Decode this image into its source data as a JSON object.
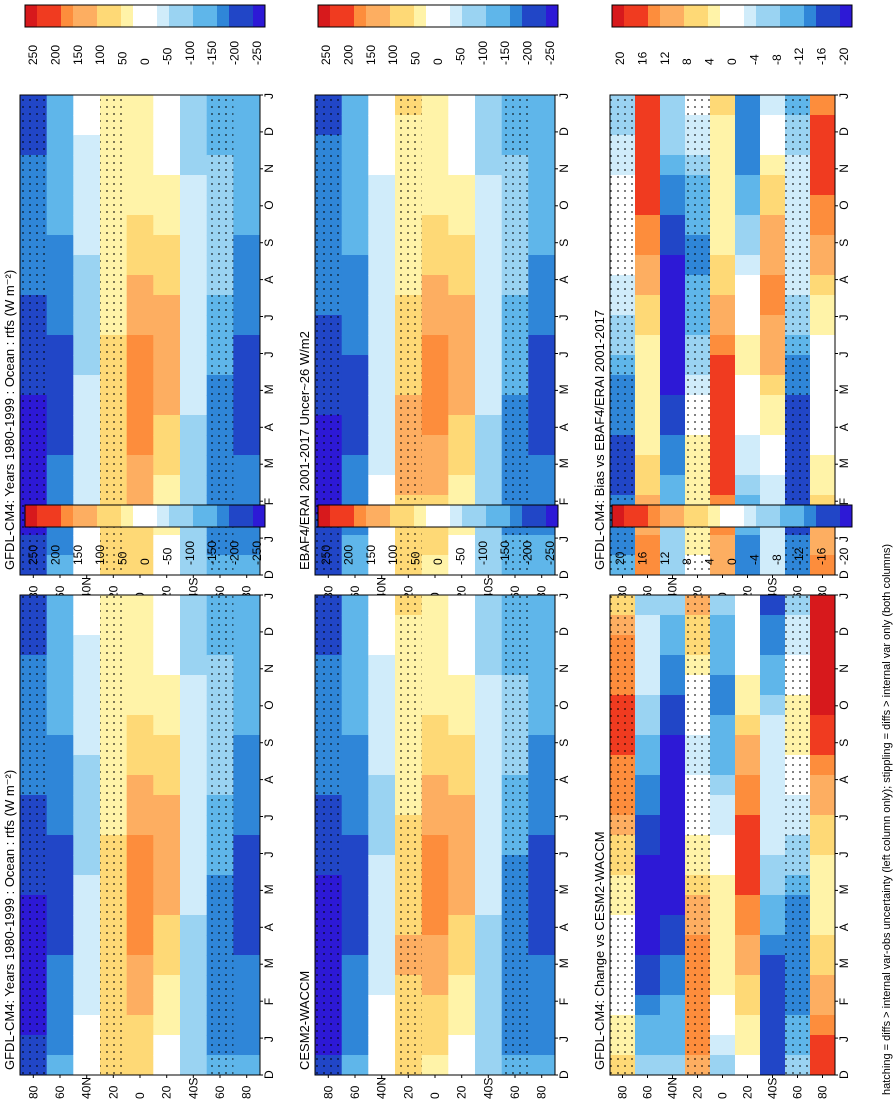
{
  "footnote": "hatching = diffs > internal var-obs uncertainty (left column only); stippling = diffs > internal var only (both columns)",
  "chart_data": [
    {
      "type": "heatmap",
      "title": "GFDL-CM4: Years 1980-1999 : Ocean : rtfs (W m⁻²)",
      "x_ticks": [
        "D",
        "J",
        "F",
        "M",
        "A",
        "M",
        "J",
        "J",
        "A",
        "S",
        "O",
        "N",
        "D",
        "J"
      ],
      "y_ticks": [
        "80",
        "60",
        "40N",
        "20",
        "0",
        "20",
        "40S",
        "60",
        "80"
      ],
      "colorbar_ticks": [
        "250",
        "200",
        "150",
        "100",
        "50",
        "0",
        "-50",
        "-100",
        "-150",
        "-200",
        "-250"
      ],
      "bands": [
        -190,
        -150,
        -40,
        60,
        95,
        60,
        -60,
        -120,
        -150
      ],
      "gap_shift": [
        0,
        0,
        -10,
        -20,
        -30,
        -20,
        0,
        0,
        0
      ]
    },
    {
      "type": "heatmap",
      "title": "GFDL-CM4: Years 1980-1999 : Ocean : rtfs (W m⁻²)",
      "x_ticks": [
        "D",
        "J",
        "F",
        "M",
        "A",
        "M",
        "J",
        "J",
        "A",
        "S",
        "O",
        "N",
        "D",
        "J"
      ],
      "y_ticks": [
        "80",
        "60",
        "40N",
        "20",
        "0",
        "20",
        "40S",
        "60",
        "80"
      ],
      "colorbar_ticks": [
        "250",
        "200",
        "150",
        "100",
        "50",
        "0",
        "-50",
        "-100",
        "-150",
        "-200",
        "-250"
      ],
      "bands": [
        -190,
        -150,
        -40,
        60,
        95,
        60,
        -60,
        -120,
        -150
      ],
      "gap_shift": [
        0,
        0,
        -10,
        -20,
        -30,
        -20,
        0,
        0,
        0
      ]
    },
    {
      "type": "heatmap",
      "title": "EBAF4/ERAI 2001-2017 Uncer~26 W/m2",
      "x_ticks": [
        "D",
        "J",
        "F",
        "M",
        "A",
        "M",
        "J",
        "J",
        "A",
        "S",
        "O",
        "N",
        "D",
        "J"
      ],
      "y_ticks": [
        "80",
        "60",
        "40N",
        "20",
        "0",
        "20",
        "40S",
        "60",
        "80"
      ],
      "colorbar_ticks": [
        "250",
        "200",
        "150",
        "100",
        "50",
        "0",
        "-50",
        "-100",
        "-150",
        "-200",
        "-250"
      ],
      "bands": [
        -185,
        -145,
        -30,
        70,
        90,
        55,
        -55,
        -115,
        -145
      ],
      "gap_shift": [
        0,
        0,
        -10,
        -20,
        -30,
        -20,
        0,
        0,
        0
      ]
    },
    {
      "type": "heatmap",
      "title": "CESM2-WACCM",
      "x_ticks": [
        "D",
        "J",
        "F",
        "M",
        "A",
        "M",
        "J",
        "J",
        "A",
        "S",
        "O",
        "N",
        "D",
        "J"
      ],
      "y_ticks": [
        "80",
        "60",
        "40N",
        "20",
        "0",
        "20",
        "40S",
        "60",
        "80"
      ],
      "colorbar_ticks": [
        "250",
        "200",
        "150",
        "100",
        "50",
        "0",
        "-50",
        "-100",
        "-150",
        "-200",
        "-250"
      ],
      "bands": [
        -195,
        -150,
        -35,
        65,
        90,
        60,
        -60,
        -125,
        -150
      ],
      "gap_shift": [
        0,
        0,
        -10,
        -20,
        -30,
        -20,
        0,
        0,
        0
      ]
    },
    {
      "type": "heatmap",
      "title": "GFDL-CM4: Bias vs EBAF4/ERAI 2001-2017",
      "x_ticks": [
        "D",
        "J",
        "F",
        "M",
        "A",
        "M",
        "J",
        "J",
        "A",
        "S",
        "O",
        "N",
        "D",
        "J"
      ],
      "y_ticks": [
        "80",
        "60",
        "40N",
        "20",
        "0",
        "20",
        "40S",
        "60",
        "80"
      ],
      "colorbar_ticks": [
        "20",
        "16",
        "12",
        "8",
        "4",
        "0",
        "-4",
        "-8",
        "-12",
        "-16",
        "-20"
      ],
      "bands": [
        -8,
        10,
        -14,
        -4,
        10,
        -6,
        4,
        -10,
        8
      ],
      "gap_shift": [
        0,
        0,
        0,
        0,
        0,
        0,
        0,
        0,
        0
      ]
    },
    {
      "type": "heatmap",
      "title": "GFDL-CM4: Change vs CESM2-WACCM",
      "x_ticks": [
        "D",
        "J",
        "F",
        "M",
        "A",
        "M",
        "J",
        "J",
        "A",
        "S",
        "O",
        "N",
        "D",
        "J"
      ],
      "y_ticks": [
        "80",
        "60",
        "40N",
        "20",
        "0",
        "20",
        "40S",
        "60",
        "80"
      ],
      "colorbar_ticks": [
        "20",
        "16",
        "12",
        "8",
        "4",
        "0",
        "-4",
        "-8",
        "-12",
        "-16",
        "-20"
      ],
      "bands": [
        8,
        -12,
        -16,
        6,
        -4,
        8,
        -10,
        -6,
        12
      ],
      "gap_shift": [
        0,
        0,
        0,
        0,
        0,
        0,
        0,
        0,
        0
      ]
    }
  ]
}
